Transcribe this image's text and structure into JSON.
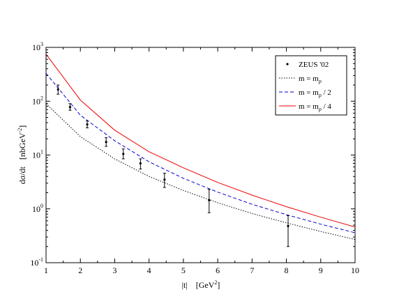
{
  "chart_data": {
    "type": "line",
    "title": "",
    "xlabel": "|t|",
    "xlabel_unit": "[GeV",
    "xlabel_unit_exp": "2",
    "xlabel_unit_close": "]",
    "ylabel": "dσ/dt",
    "ylabel_unit": "[nbGeV",
    "ylabel_unit_exp": "-2",
    "ylabel_unit_close": "]",
    "x_scale": "linear",
    "y_scale": "log",
    "xlim": [
      1,
      10
    ],
    "ylim": [
      0.1,
      1000
    ],
    "x_ticks": [
      "1",
      "2",
      "3",
      "4",
      "5",
      "6",
      "7",
      "8",
      "9",
      "10"
    ],
    "y_ticks": [
      {
        "base": "10",
        "exp": "-1"
      },
      {
        "base": "10",
        "exp": "0"
      },
      {
        "base": "10",
        "exp": "1"
      },
      {
        "base": "10",
        "exp": "2"
      },
      {
        "base": "10",
        "exp": "3"
      }
    ],
    "legend_position": "top-right",
    "legend": [
      {
        "type": "points",
        "label": "ZEUS  '02",
        "color": "#000000"
      },
      {
        "type": "line",
        "label": "m = m",
        "sub": "ρ",
        "suffix": "",
        "color": "#000000",
        "dash": "dotted"
      },
      {
        "type": "line",
        "label": "m = m",
        "sub": "ρ",
        "suffix": " / 2",
        "color": "#0000cc",
        "dash": "dashed"
      },
      {
        "type": "line",
        "label": "m = m",
        "sub": "ρ",
        "suffix": " / 4",
        "color": "#ee0000",
        "dash": "solid"
      }
    ],
    "series": [
      {
        "type": "line",
        "color": "#ee0000",
        "dash": "solid",
        "x": [
          1,
          2,
          3,
          4,
          5,
          6,
          7,
          8,
          9,
          10
        ],
        "y": [
          750,
          105,
          29,
          11.5,
          5.8,
          3.1,
          1.8,
          1.1,
          0.7,
          0.46
        ]
      },
      {
        "type": "line",
        "color": "#0000cc",
        "dash": "dashed",
        "x": [
          1,
          2,
          3,
          4,
          5,
          6,
          7,
          8,
          9,
          10
        ],
        "y": [
          330,
          55,
          18.5,
          7.5,
          3.7,
          2.05,
          1.22,
          0.78,
          0.52,
          0.36
        ]
      },
      {
        "type": "line",
        "color": "#000000",
        "dash": "dotted",
        "x": [
          1,
          2,
          3,
          4,
          5,
          6,
          7,
          8,
          9,
          10
        ],
        "y": [
          90,
          22,
          8.5,
          4.0,
          2.2,
          1.3,
          0.82,
          0.55,
          0.38,
          0.27
        ]
      },
      {
        "type": "points",
        "color": "#000000",
        "x": [
          1.35,
          1.7,
          2.2,
          2.75,
          3.25,
          3.75,
          4.45,
          5.75,
          8.05
        ],
        "y": [
          165,
          78,
          37,
          17.5,
          10.5,
          7.0,
          3.5,
          1.45,
          0.48
        ],
        "y_low": [
          135,
          68,
          32,
          14.5,
          8.5,
          5.5,
          2.5,
          0.85,
          0.2
        ],
        "y_high": [
          200,
          90,
          43,
          21,
          13,
          8.5,
          4.6,
          2.3,
          0.75
        ]
      }
    ]
  }
}
